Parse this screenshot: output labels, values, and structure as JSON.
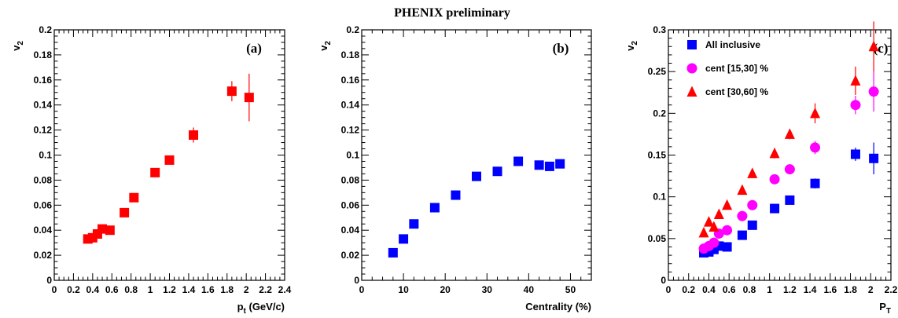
{
  "figure_title": "PHENIX preliminary",
  "colors": {
    "red": "#ff0000",
    "blue": "#0000ff",
    "magenta": "#ff00ff",
    "axis": "#000000"
  },
  "chart_data": [
    {
      "id": "a",
      "type": "scatter",
      "panel_label": "(a)",
      "xlabel_main": "p",
      "xlabel_sub": "t",
      "xlabel_tail": " (GeV/c)",
      "ylabel_main": "v",
      "ylabel_sub": "2",
      "xlim": [
        0,
        2.4
      ],
      "ylim": [
        0,
        0.2
      ],
      "x_ticks": [
        {
          "v": 0,
          "label": "0"
        },
        {
          "v": 0.2,
          "label": "0.2"
        },
        {
          "v": 0.4,
          "label": "0.4"
        },
        {
          "v": 0.6,
          "label": "0.6"
        },
        {
          "v": 0.8,
          "label": "0.8"
        },
        {
          "v": 1.0,
          "label": "1"
        },
        {
          "v": 1.2,
          "label": "1.2"
        },
        {
          "v": 1.4,
          "label": "1.4"
        },
        {
          "v": 1.6,
          "label": "1.6"
        },
        {
          "v": 1.8,
          "label": "1.8"
        },
        {
          "v": 2.0,
          "label": "2"
        },
        {
          "v": 2.2,
          "label": "2.2"
        },
        {
          "v": 2.4,
          "label": "2.4"
        }
      ],
      "y_ticks": [
        {
          "v": 0,
          "label": "0"
        },
        {
          "v": 0.02,
          "label": "0.02"
        },
        {
          "v": 0.04,
          "label": "0.04"
        },
        {
          "v": 0.06,
          "label": "0.06"
        },
        {
          "v": 0.08,
          "label": "0.08"
        },
        {
          "v": 0.1,
          "label": "0.1"
        },
        {
          "v": 0.12,
          "label": "0.12"
        },
        {
          "v": 0.14,
          "label": "0.14"
        },
        {
          "v": 0.16,
          "label": "0.16"
        },
        {
          "v": 0.18,
          "label": "0.18"
        },
        {
          "v": 0.2,
          "label": "0.2"
        }
      ],
      "series": [
        {
          "marker": "square",
          "color": "#ff0000",
          "points": [
            {
              "x": 0.35,
              "y": 0.033,
              "err": 0.002
            },
            {
              "x": 0.4,
              "y": 0.034,
              "err": 0.002
            },
            {
              "x": 0.45,
              "y": 0.037,
              "err": 0.002
            },
            {
              "x": 0.5,
              "y": 0.041,
              "err": 0.002
            },
            {
              "x": 0.58,
              "y": 0.04,
              "err": 0.002
            },
            {
              "x": 0.73,
              "y": 0.054,
              "err": 0.002
            },
            {
              "x": 0.83,
              "y": 0.066,
              "err": 0.002
            },
            {
              "x": 1.05,
              "y": 0.086,
              "err": 0.002
            },
            {
              "x": 1.2,
              "y": 0.096,
              "err": 0.003
            },
            {
              "x": 1.45,
              "y": 0.116,
              "err": 0.006
            },
            {
              "x": 1.85,
              "y": 0.151,
              "err": 0.008
            },
            {
              "x": 2.03,
              "y": 0.146,
              "err": 0.019
            }
          ]
        }
      ]
    },
    {
      "id": "b",
      "type": "scatter",
      "panel_label": "(b)",
      "xlabel_main": "Centrality (%)",
      "xlabel_sub": "",
      "xlabel_tail": "",
      "ylabel_main": "v",
      "ylabel_sub": "2",
      "xlim": [
        0,
        55
      ],
      "ylim": [
        0,
        0.2
      ],
      "x_ticks": [
        {
          "v": 0,
          "label": "0"
        },
        {
          "v": 10,
          "label": "10"
        },
        {
          "v": 20,
          "label": "20"
        },
        {
          "v": 30,
          "label": "30"
        },
        {
          "v": 40,
          "label": "40"
        },
        {
          "v": 50,
          "label": "50"
        }
      ],
      "y_ticks": [
        {
          "v": 0,
          "label": "0"
        },
        {
          "v": 0.02,
          "label": "0.02"
        },
        {
          "v": 0.04,
          "label": "0.04"
        },
        {
          "v": 0.06,
          "label": "0.06"
        },
        {
          "v": 0.08,
          "label": "0.08"
        },
        {
          "v": 0.1,
          "label": "0.1"
        },
        {
          "v": 0.12,
          "label": "0.12"
        },
        {
          "v": 0.14,
          "label": "0.14"
        },
        {
          "v": 0.16,
          "label": "0.16"
        },
        {
          "v": 0.18,
          "label": "0.18"
        },
        {
          "v": 0.2,
          "label": "0.2"
        }
      ],
      "series": [
        {
          "marker": "square",
          "color": "#0000ff",
          "points": [
            {
              "x": 7.5,
              "y": 0.022,
              "err": 0
            },
            {
              "x": 10,
              "y": 0.033,
              "err": 0
            },
            {
              "x": 12.5,
              "y": 0.045,
              "err": 0
            },
            {
              "x": 17.5,
              "y": 0.058,
              "err": 0
            },
            {
              "x": 22.5,
              "y": 0.068,
              "err": 0
            },
            {
              "x": 27.5,
              "y": 0.083,
              "err": 0
            },
            {
              "x": 32.5,
              "y": 0.087,
              "err": 0
            },
            {
              "x": 37.5,
              "y": 0.095,
              "err": 0
            },
            {
              "x": 42.5,
              "y": 0.092,
              "err": 0
            },
            {
              "x": 45,
              "y": 0.091,
              "err": 0
            },
            {
              "x": 47.5,
              "y": 0.093,
              "err": 0
            }
          ]
        }
      ]
    },
    {
      "id": "c",
      "type": "scatter",
      "panel_label": "(c)",
      "xlabel_main": "P",
      "xlabel_sub": "T",
      "xlabel_tail": "",
      "ylabel_main": "v",
      "ylabel_sub": "2",
      "xlim": [
        0,
        2.2
      ],
      "ylim": [
        0,
        0.3
      ],
      "legend_position": "top-left",
      "x_ticks": [
        {
          "v": 0,
          "label": "0"
        },
        {
          "v": 0.2,
          "label": "0.2"
        },
        {
          "v": 0.4,
          "label": "0.4"
        },
        {
          "v": 0.6,
          "label": "0.6"
        },
        {
          "v": 0.8,
          "label": "0.8"
        },
        {
          "v": 1.0,
          "label": "1"
        },
        {
          "v": 1.2,
          "label": "1.2"
        },
        {
          "v": 1.4,
          "label": "1.4"
        },
        {
          "v": 1.6,
          "label": "1.6"
        },
        {
          "v": 1.8,
          "label": "1.8"
        },
        {
          "v": 2.0,
          "label": "2"
        },
        {
          "v": 2.2,
          "label": "2.2"
        }
      ],
      "y_ticks": [
        {
          "v": 0,
          "label": "0"
        },
        {
          "v": 0.05,
          "label": "0.05"
        },
        {
          "v": 0.1,
          "label": "0.1"
        },
        {
          "v": 0.15,
          "label": "0.15"
        },
        {
          "v": 0.2,
          "label": "0.2"
        },
        {
          "v": 0.25,
          "label": "0.25"
        },
        {
          "v": 0.3,
          "label": "0.3"
        }
      ],
      "series": [
        {
          "name": "All inclusive",
          "marker": "square",
          "color": "#0000ff",
          "points": [
            {
              "x": 0.35,
              "y": 0.033,
              "err": 0.002
            },
            {
              "x": 0.4,
              "y": 0.034,
              "err": 0.002
            },
            {
              "x": 0.45,
              "y": 0.037,
              "err": 0.002
            },
            {
              "x": 0.5,
              "y": 0.041,
              "err": 0.002
            },
            {
              "x": 0.58,
              "y": 0.04,
              "err": 0.002
            },
            {
              "x": 0.73,
              "y": 0.054,
              "err": 0.002
            },
            {
              "x": 0.83,
              "y": 0.066,
              "err": 0.002
            },
            {
              "x": 1.05,
              "y": 0.086,
              "err": 0.002
            },
            {
              "x": 1.2,
              "y": 0.096,
              "err": 0.003
            },
            {
              "x": 1.45,
              "y": 0.116,
              "err": 0.006
            },
            {
              "x": 1.85,
              "y": 0.151,
              "err": 0.008
            },
            {
              "x": 2.03,
              "y": 0.146,
              "err": 0.019
            }
          ]
        },
        {
          "name": "cent [15,30] %",
          "marker": "circle",
          "color": "#ff00ff",
          "points": [
            {
              "x": 0.35,
              "y": 0.038,
              "err": 0.003
            },
            {
              "x": 0.4,
              "y": 0.041,
              "err": 0.003
            },
            {
              "x": 0.45,
              "y": 0.045,
              "err": 0.003
            },
            {
              "x": 0.5,
              "y": 0.056,
              "err": 0.003
            },
            {
              "x": 0.58,
              "y": 0.06,
              "err": 0.003
            },
            {
              "x": 0.73,
              "y": 0.077,
              "err": 0.003
            },
            {
              "x": 0.83,
              "y": 0.09,
              "err": 0.003
            },
            {
              "x": 1.05,
              "y": 0.121,
              "err": 0.004
            },
            {
              "x": 1.2,
              "y": 0.133,
              "err": 0.004
            },
            {
              "x": 1.45,
              "y": 0.159,
              "err": 0.008
            },
            {
              "x": 1.85,
              "y": 0.21,
              "err": 0.011
            },
            {
              "x": 2.03,
              "y": 0.226,
              "err": 0.024
            }
          ]
        },
        {
          "name": "cent [30,60] %",
          "marker": "triangle",
          "color": "#ff0000",
          "points": [
            {
              "x": 0.35,
              "y": 0.057,
              "err": 0.005
            },
            {
              "x": 0.4,
              "y": 0.07,
              "err": 0.005
            },
            {
              "x": 0.45,
              "y": 0.064,
              "err": 0.005
            },
            {
              "x": 0.5,
              "y": 0.079,
              "err": 0.004
            },
            {
              "x": 0.58,
              "y": 0.09,
              "err": 0.004
            },
            {
              "x": 0.73,
              "y": 0.108,
              "err": 0.004
            },
            {
              "x": 0.83,
              "y": 0.128,
              "err": 0.004
            },
            {
              "x": 1.05,
              "y": 0.152,
              "err": 0.006
            },
            {
              "x": 1.2,
              "y": 0.175,
              "err": 0.006
            },
            {
              "x": 1.45,
              "y": 0.2,
              "err": 0.012
            },
            {
              "x": 1.85,
              "y": 0.239,
              "err": 0.017
            },
            {
              "x": 2.03,
              "y": 0.28,
              "err": 0.03
            }
          ]
        }
      ]
    }
  ]
}
